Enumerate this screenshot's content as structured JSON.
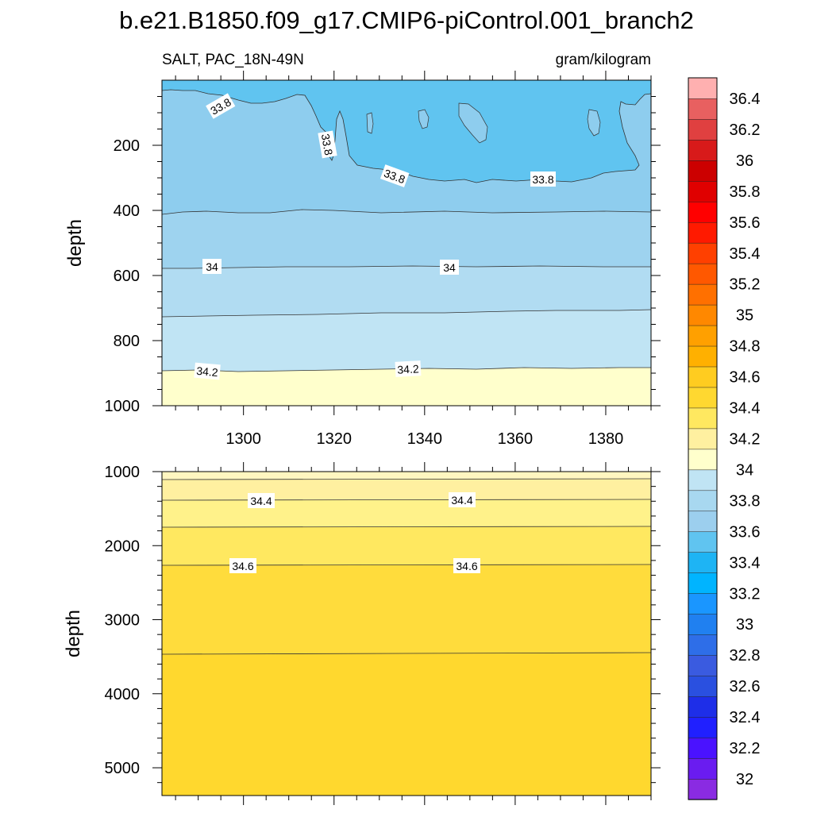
{
  "chart_data": {
    "type": "contour",
    "title": "b.e21.B1850.f09_g17.CMIP6-piControl.001_branch2",
    "left_string": "SALT, PAC_18N-49N",
    "right_string": "gram/kilogram",
    "colorbar": {
      "levels": [
        "32",
        "32.2",
        "32.4",
        "32.6",
        "32.8",
        "33",
        "33.2",
        "33.4",
        "33.6",
        "33.8",
        "34",
        "34.2",
        "34.4",
        "34.6",
        "34.8",
        "35",
        "35.2",
        "35.4",
        "35.6",
        "35.8",
        "36",
        "36.2",
        "36.4"
      ],
      "colors": [
        "#8a2be2",
        "#6a1cf0",
        "#4a12ff",
        "#2020ff",
        "#1e2ee8",
        "#2a50e0",
        "#3a5be0",
        "#2e6ee8",
        "#2080f0",
        "#1a96ff",
        "#00b4ff",
        "#1eb4f4",
        "#60c4f0",
        "#9ccfee",
        "#a8d8f0",
        "#c0e4f4",
        "#ffffcc",
        "#fff0a0",
        "#ffe860",
        "#ffd830",
        "#ffcc20",
        "#ffb000",
        "#ffa000",
        "#ff8800",
        "#ff7000",
        "#ff5800",
        "#ff4000",
        "#ff1a00",
        "#ff0000",
        "#e00000",
        "#cc0000",
        "#d81a1a",
        "#e04040",
        "#e86060",
        "#ffb0b0"
      ]
    },
    "top_panel": {
      "xlabel": "",
      "ylabel": "depth",
      "x_range": [
        1282,
        1390
      ],
      "y_range": [
        0,
        1000
      ],
      "y_reversed": true,
      "x_ticks": [
        "1300",
        "1320",
        "1340",
        "1360",
        "1380"
      ],
      "y_ticks": [
        "200",
        "400",
        "600",
        "800",
        "1000"
      ],
      "contour_labels": [
        "33.8",
        "33.8",
        "33.8",
        "33.8",
        "34",
        "34",
        "34.2",
        "34.2"
      ],
      "bands": [
        {
          "level": "<33.8",
          "color": "#60c4f0"
        },
        {
          "level": "33.8-33.9",
          "color": "#8ecdee"
        },
        {
          "level": "33.9-34.0",
          "color": "#9ed3ef"
        },
        {
          "level": "34.0-34.1",
          "color": "#b1dcf2"
        },
        {
          "level": "34.1-34.2",
          "color": "#c0e4f4"
        },
        {
          "level": ">34.2",
          "color": "#ffffcc"
        }
      ],
      "contours": [
        {
          "level": 33.9,
          "depth_approx": 415
        },
        {
          "level": 34.0,
          "depth_approx": 570
        },
        {
          "level": 34.1,
          "depth_approx": 715
        },
        {
          "level": 34.2,
          "depth_approx": 890
        }
      ]
    },
    "bottom_panel": {
      "xlabel": "",
      "ylabel": "depth",
      "x_range": [
        1282,
        1390
      ],
      "y_range": [
        1000,
        5375
      ],
      "y_reversed": true,
      "y_ticks": [
        "1000",
        "2000",
        "3000",
        "4000",
        "5000"
      ],
      "contour_labels": [
        "34.4",
        "34.4",
        "34.6",
        "34.6"
      ],
      "bands": [
        {
          "level": "34.2-34.3",
          "color": "#fff6c0"
        },
        {
          "level": "34.3-34.4",
          "color": "#fff0a0"
        },
        {
          "level": "34.4-34.5",
          "color": "#fff28a"
        },
        {
          "level": "34.5-34.6",
          "color": "#ffe860"
        },
        {
          "level": "34.6-34.7",
          "color": "#ffdc3c"
        },
        {
          "level": ">34.7",
          "color": "#ffd82e"
        }
      ],
      "contours": [
        {
          "level": 34.3,
          "depth_approx": 1100
        },
        {
          "level": 34.4,
          "depth_approx": 1380
        },
        {
          "level": 34.5,
          "depth_approx": 1740
        },
        {
          "level": 34.6,
          "depth_approx": 2250
        },
        {
          "level": 34.7,
          "depth_approx": 3450
        }
      ]
    }
  }
}
